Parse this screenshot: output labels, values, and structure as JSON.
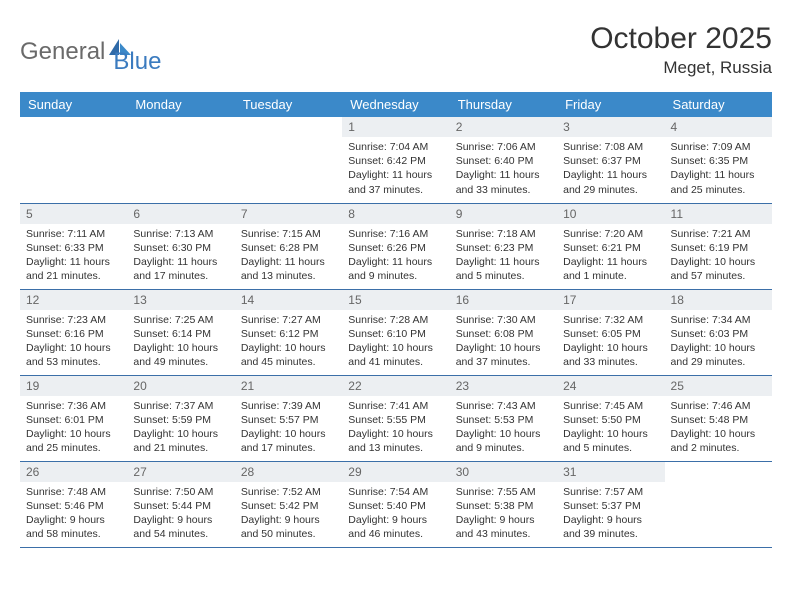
{
  "brand": {
    "part1": "General",
    "part2": "Blue"
  },
  "title": "October 2025",
  "location": "Meget, Russia",
  "colors": {
    "header_bg": "#3b89c9",
    "header_text": "#ffffff",
    "daynum_bg": "#eceff2",
    "border": "#3b6fa8",
    "logo_blue": "#3b7bbf",
    "logo_gray": "#6a6a6a"
  },
  "weekdays": [
    "Sunday",
    "Monday",
    "Tuesday",
    "Wednesday",
    "Thursday",
    "Friday",
    "Saturday"
  ],
  "weeks": [
    [
      null,
      null,
      null,
      {
        "d": "1",
        "sr": "7:04 AM",
        "ss": "6:42 PM",
        "dl": "11 hours and 37 minutes."
      },
      {
        "d": "2",
        "sr": "7:06 AM",
        "ss": "6:40 PM",
        "dl": "11 hours and 33 minutes."
      },
      {
        "d": "3",
        "sr": "7:08 AM",
        "ss": "6:37 PM",
        "dl": "11 hours and 29 minutes."
      },
      {
        "d": "4",
        "sr": "7:09 AM",
        "ss": "6:35 PM",
        "dl": "11 hours and 25 minutes."
      }
    ],
    [
      {
        "d": "5",
        "sr": "7:11 AM",
        "ss": "6:33 PM",
        "dl": "11 hours and 21 minutes."
      },
      {
        "d": "6",
        "sr": "7:13 AM",
        "ss": "6:30 PM",
        "dl": "11 hours and 17 minutes."
      },
      {
        "d": "7",
        "sr": "7:15 AM",
        "ss": "6:28 PM",
        "dl": "11 hours and 13 minutes."
      },
      {
        "d": "8",
        "sr": "7:16 AM",
        "ss": "6:26 PM",
        "dl": "11 hours and 9 minutes."
      },
      {
        "d": "9",
        "sr": "7:18 AM",
        "ss": "6:23 PM",
        "dl": "11 hours and 5 minutes."
      },
      {
        "d": "10",
        "sr": "7:20 AM",
        "ss": "6:21 PM",
        "dl": "11 hours and 1 minute."
      },
      {
        "d": "11",
        "sr": "7:21 AM",
        "ss": "6:19 PM",
        "dl": "10 hours and 57 minutes."
      }
    ],
    [
      {
        "d": "12",
        "sr": "7:23 AM",
        "ss": "6:16 PM",
        "dl": "10 hours and 53 minutes."
      },
      {
        "d": "13",
        "sr": "7:25 AM",
        "ss": "6:14 PM",
        "dl": "10 hours and 49 minutes."
      },
      {
        "d": "14",
        "sr": "7:27 AM",
        "ss": "6:12 PM",
        "dl": "10 hours and 45 minutes."
      },
      {
        "d": "15",
        "sr": "7:28 AM",
        "ss": "6:10 PM",
        "dl": "10 hours and 41 minutes."
      },
      {
        "d": "16",
        "sr": "7:30 AM",
        "ss": "6:08 PM",
        "dl": "10 hours and 37 minutes."
      },
      {
        "d": "17",
        "sr": "7:32 AM",
        "ss": "6:05 PM",
        "dl": "10 hours and 33 minutes."
      },
      {
        "d": "18",
        "sr": "7:34 AM",
        "ss": "6:03 PM",
        "dl": "10 hours and 29 minutes."
      }
    ],
    [
      {
        "d": "19",
        "sr": "7:36 AM",
        "ss": "6:01 PM",
        "dl": "10 hours and 25 minutes."
      },
      {
        "d": "20",
        "sr": "7:37 AM",
        "ss": "5:59 PM",
        "dl": "10 hours and 21 minutes."
      },
      {
        "d": "21",
        "sr": "7:39 AM",
        "ss": "5:57 PM",
        "dl": "10 hours and 17 minutes."
      },
      {
        "d": "22",
        "sr": "7:41 AM",
        "ss": "5:55 PM",
        "dl": "10 hours and 13 minutes."
      },
      {
        "d": "23",
        "sr": "7:43 AM",
        "ss": "5:53 PM",
        "dl": "10 hours and 9 minutes."
      },
      {
        "d": "24",
        "sr": "7:45 AM",
        "ss": "5:50 PM",
        "dl": "10 hours and 5 minutes."
      },
      {
        "d": "25",
        "sr": "7:46 AM",
        "ss": "5:48 PM",
        "dl": "10 hours and 2 minutes."
      }
    ],
    [
      {
        "d": "26",
        "sr": "7:48 AM",
        "ss": "5:46 PM",
        "dl": "9 hours and 58 minutes."
      },
      {
        "d": "27",
        "sr": "7:50 AM",
        "ss": "5:44 PM",
        "dl": "9 hours and 54 minutes."
      },
      {
        "d": "28",
        "sr": "7:52 AM",
        "ss": "5:42 PM",
        "dl": "9 hours and 50 minutes."
      },
      {
        "d": "29",
        "sr": "7:54 AM",
        "ss": "5:40 PM",
        "dl": "9 hours and 46 minutes."
      },
      {
        "d": "30",
        "sr": "7:55 AM",
        "ss": "5:38 PM",
        "dl": "9 hours and 43 minutes."
      },
      {
        "d": "31",
        "sr": "7:57 AM",
        "ss": "5:37 PM",
        "dl": "9 hours and 39 minutes."
      },
      null
    ]
  ],
  "labels": {
    "sunrise": "Sunrise: ",
    "sunset": "Sunset: ",
    "daylight": "Daylight: "
  }
}
